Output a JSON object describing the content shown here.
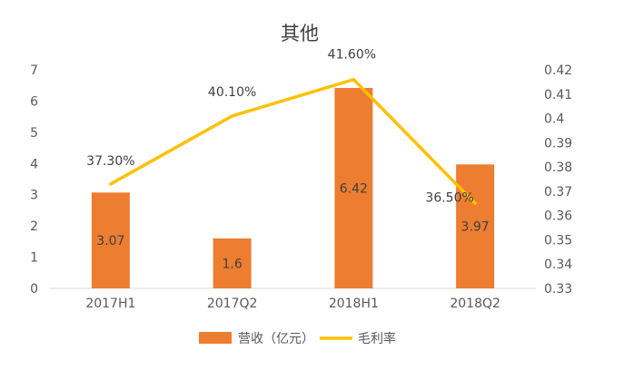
{
  "chart_data": {
    "type": "bar+line",
    "title": "其他",
    "categories": [
      "2017H1",
      "2017Q2",
      "2018H1",
      "2018Q2"
    ],
    "series": [
      {
        "name": "营收（亿元）",
        "type": "bar",
        "axis": "left",
        "color": "#ED7D31",
        "values": [
          3.07,
          1.6,
          6.42,
          3.97
        ],
        "labels": [
          "3.07",
          "1.6",
          "6.42",
          "3.97"
        ]
      },
      {
        "name": "毛利率",
        "type": "line",
        "axis": "right",
        "color": "#FFC000",
        "values": [
          0.373,
          0.401,
          0.416,
          0.365
        ],
        "labels": [
          "37.30%",
          "40.10%",
          "41.60%",
          "36.50%"
        ]
      }
    ],
    "y_left": {
      "ylim": [
        0,
        7
      ],
      "ticks": [
        "0",
        "1",
        "2",
        "3",
        "4",
        "5",
        "6",
        "7"
      ]
    },
    "y_right": {
      "ylim": [
        0.33,
        0.42
      ],
      "ticks": [
        "0.33",
        "0.34",
        "0.35",
        "0.36",
        "0.37",
        "0.38",
        "0.39",
        "0.4",
        "0.41",
        "0.42"
      ]
    },
    "grid": false,
    "legend_position": "bottom"
  }
}
